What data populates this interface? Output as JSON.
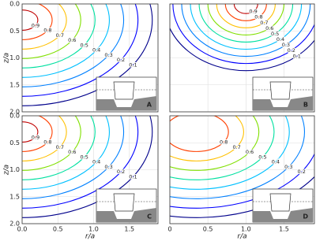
{
  "chart_data": [
    {
      "type": "contour",
      "title": "A",
      "levels": [
        0.1,
        0.2,
        0.3,
        0.4,
        0.5,
        0.6,
        0.7,
        0.8,
        0.9
      ],
      "colors": [
        "#00008b",
        "#0000ff",
        "#0080ff",
        "#00c0ff",
        "#00e0a0",
        "#80e000",
        "#ffc000",
        "#ff4000",
        "#c00000"
      ],
      "xlim": [
        0,
        1.9
      ],
      "ylim": [
        0,
        2
      ],
      "xticks": [
        0,
        0.5,
        1,
        1.5
      ],
      "yticks": [
        {
          "value": 0,
          "label": "0.0"
        },
        0.5,
        {
          "value": 1,
          "label": "1.0"
        },
        1.5,
        {
          "value": 2,
          "label": "2.0"
        }
      ],
      "ylabel": "z/a",
      "grid": true
    },
    {
      "type": "contour",
      "title": "B",
      "levels": [
        0.1,
        0.2,
        0.3,
        0.4,
        0.5,
        0.6,
        0.7,
        0.8,
        0.9
      ],
      "colors": [
        "#00008b",
        "#0000ff",
        "#0080ff",
        "#00c0ff",
        "#00e0a0",
        "#80e000",
        "#ffc000",
        "#ff4000",
        "#c00000"
      ],
      "xlim": [
        0,
        1.9
      ],
      "ylim": [
        0,
        2
      ],
      "xticks": [
        0,
        0.5,
        1,
        1.5
      ],
      "yticks": [
        0,
        0.5,
        1,
        1.5,
        2
      ],
      "grid": true
    },
    {
      "type": "contour",
      "title": "C",
      "levels": [
        0.1,
        0.2,
        0.3,
        0.4,
        0.5,
        0.6,
        0.7,
        0.8,
        0.9
      ],
      "colors": [
        "#00008b",
        "#0000ff",
        "#0080ff",
        "#00c0ff",
        "#00e0a0",
        "#80e000",
        "#ffc000",
        "#ff4000",
        "#c00000"
      ],
      "xlim": [
        0,
        1.9
      ],
      "ylim": [
        0,
        2
      ],
      "xticks": [
        {
          "value": 0,
          "label": "0.0"
        },
        0.5,
        {
          "value": 1,
          "label": "1.0"
        },
        1.5
      ],
      "yticks": [
        {
          "value": 0,
          "label": "0.0"
        },
        0.5,
        {
          "value": 1,
          "label": "1.0"
        },
        1.5,
        {
          "value": 2,
          "label": "2.0"
        }
      ],
      "xlabel": "r/a",
      "ylabel": "z/a",
      "grid": true
    },
    {
      "type": "contour",
      "title": "D",
      "levels": [
        0.1,
        0.2,
        0.3,
        0.4,
        0.5,
        0.6,
        0.7,
        0.8
      ],
      "colors": [
        "#00008b",
        "#0000ff",
        "#0080ff",
        "#00c0ff",
        "#00e0a0",
        "#80e000",
        "#ffc000",
        "#ff4000"
      ],
      "xlim": [
        0,
        1.9
      ],
      "ylim": [
        0,
        2
      ],
      "xticks": [
        0,
        0.5,
        {
          "value": 1,
          "label": "1.0"
        },
        1.5
      ],
      "yticks": [
        0,
        0.5,
        1,
        1.5,
        2
      ],
      "xlabel": "r/a",
      "grid": true
    }
  ]
}
